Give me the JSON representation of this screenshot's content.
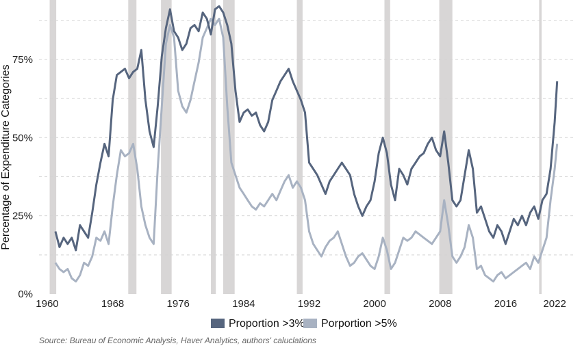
{
  "chart_data": {
    "type": "line",
    "ylabel": "Percentage of Expenditure Categories",
    "source": "Source: Bureau of Economic Analysis, Haver Analytics, authors' caluclations",
    "x_ticks": [
      "1960",
      "1968",
      "1976",
      "1984",
      "1992",
      "2000",
      "2008",
      "2016",
      "2022"
    ],
    "x_tick_values": [
      1960,
      1968,
      1976,
      1984,
      1992,
      2000,
      2008,
      2016,
      2022
    ],
    "y_ticks": [
      "0%",
      "25%",
      "50%",
      "75%"
    ],
    "y_tick_values": [
      0,
      25,
      50,
      75
    ],
    "xlim": [
      1959,
      2024.5
    ],
    "ylim": [
      0,
      94
    ],
    "grid": "horizontal dashed",
    "legend_position": "bottom",
    "recessions": [
      [
        1960.3,
        1961.1
      ],
      [
        1969.9,
        1970.9
      ],
      [
        1973.9,
        1975.2
      ],
      [
        1980.0,
        1980.6
      ],
      [
        1981.5,
        1982.9
      ],
      [
        1990.5,
        1991.2
      ],
      [
        2001.2,
        2001.9
      ],
      [
        2007.9,
        2009.5
      ],
      [
        2020.1,
        2020.4
      ]
    ],
    "recession_color": "#d8d6d6",
    "series": [
      {
        "name": "Proportion >3%",
        "color": "#56657e",
        "x": [
          1961.0,
          1961.5,
          1962.0,
          1962.5,
          1963.0,
          1963.5,
          1964.0,
          1964.5,
          1965.0,
          1965.5,
          1966.0,
          1966.5,
          1967.0,
          1967.5,
          1968.0,
          1968.5,
          1969.0,
          1969.5,
          1970.0,
          1970.5,
          1971.0,
          1971.5,
          1972.0,
          1972.5,
          1973.0,
          1973.5,
          1974.0,
          1974.5,
          1975.0,
          1975.5,
          1976.0,
          1976.5,
          1977.0,
          1977.5,
          1978.0,
          1978.5,
          1979.0,
          1979.5,
          1980.0,
          1980.5,
          1981.0,
          1981.5,
          1982.0,
          1982.5,
          1983.0,
          1983.5,
          1984.0,
          1984.5,
          1985.0,
          1985.5,
          1986.0,
          1986.5,
          1987.0,
          1987.5,
          1988.0,
          1988.5,
          1989.0,
          1989.5,
          1990.0,
          1990.5,
          1991.0,
          1991.5,
          1992.0,
          1992.5,
          1993.0,
          1993.5,
          1994.0,
          1994.5,
          1995.0,
          1995.5,
          1996.0,
          1996.5,
          1997.0,
          1997.5,
          1998.0,
          1998.5,
          1999.0,
          1999.5,
          2000.0,
          2000.5,
          2001.0,
          2001.5,
          2002.0,
          2002.5,
          2003.0,
          2003.5,
          2004.0,
          2004.5,
          2005.0,
          2005.5,
          2006.0,
          2006.5,
          2007.0,
          2007.5,
          2008.0,
          2008.5,
          2009.0,
          2009.5,
          2010.0,
          2010.5,
          2011.0,
          2011.5,
          2012.0,
          2012.5,
          2013.0,
          2013.5,
          2014.0,
          2014.5,
          2015.0,
          2015.5,
          2016.0,
          2016.5,
          2017.0,
          2017.5,
          2018.0,
          2018.5,
          2019.0,
          2019.5,
          2020.0,
          2020.5,
          2021.0,
          2021.5,
          2022.0,
          2022.3
        ],
        "values": [
          20,
          15,
          18,
          16,
          18,
          14,
          22,
          20,
          18,
          26,
          35,
          42,
          48,
          44,
          62,
          70,
          71,
          72,
          69,
          71,
          72,
          78,
          62,
          52,
          47,
          60,
          76,
          85,
          91,
          84,
          82,
          78,
          80,
          85,
          86,
          84,
          90,
          88,
          83,
          91,
          92,
          90,
          86,
          80,
          65,
          55,
          58,
          59,
          57,
          58,
          54,
          52,
          55,
          62,
          65,
          68,
          70,
          72,
          68,
          65,
          62,
          58,
          42,
          40,
          38,
          35,
          32,
          36,
          38,
          40,
          42,
          40,
          38,
          32,
          28,
          25,
          28,
          30,
          36,
          45,
          50,
          45,
          35,
          30,
          40,
          38,
          35,
          40,
          42,
          44,
          45,
          48,
          50,
          46,
          44,
          52,
          42,
          30,
          28,
          30,
          38,
          46,
          40,
          26,
          28,
          24,
          20,
          18,
          22,
          20,
          16,
          20,
          24,
          22,
          25,
          22,
          26,
          28,
          24,
          30,
          32,
          40,
          55,
          68
        ]
      },
      {
        "name": "Porportion >5%",
        "color": "#a8b2c2",
        "x": [
          1961.0,
          1961.5,
          1962.0,
          1962.5,
          1963.0,
          1963.5,
          1964.0,
          1964.5,
          1965.0,
          1965.5,
          1966.0,
          1966.5,
          1967.0,
          1967.5,
          1968.0,
          1968.5,
          1969.0,
          1969.5,
          1970.0,
          1970.5,
          1971.0,
          1971.5,
          1972.0,
          1972.5,
          1973.0,
          1973.5,
          1974.0,
          1974.5,
          1975.0,
          1975.5,
          1976.0,
          1976.5,
          1977.0,
          1977.5,
          1978.0,
          1978.5,
          1979.0,
          1979.5,
          1980.0,
          1980.5,
          1981.0,
          1981.5,
          1982.0,
          1982.5,
          1983.0,
          1983.5,
          1984.0,
          1984.5,
          1985.0,
          1985.5,
          1986.0,
          1986.5,
          1987.0,
          1987.5,
          1988.0,
          1988.5,
          1989.0,
          1989.5,
          1990.0,
          1990.5,
          1991.0,
          1991.5,
          1992.0,
          1992.5,
          1993.0,
          1993.5,
          1994.0,
          1994.5,
          1995.0,
          1995.5,
          1996.0,
          1996.5,
          1997.0,
          1997.5,
          1998.0,
          1998.5,
          1999.0,
          1999.5,
          2000.0,
          2000.5,
          2001.0,
          2001.5,
          2002.0,
          2002.5,
          2003.0,
          2003.5,
          2004.0,
          2004.5,
          2005.0,
          2005.5,
          2006.0,
          2006.5,
          2007.0,
          2007.5,
          2008.0,
          2008.5,
          2009.0,
          2009.5,
          2010.0,
          2010.5,
          2011.0,
          2011.5,
          2012.0,
          2012.5,
          2013.0,
          2013.5,
          2014.0,
          2014.5,
          2015.0,
          2015.5,
          2016.0,
          2016.5,
          2017.0,
          2017.5,
          2018.0,
          2018.5,
          2019.0,
          2019.5,
          2020.0,
          2020.5,
          2021.0,
          2021.5,
          2022.0,
          2022.3
        ],
        "values": [
          10,
          8,
          7,
          8,
          5,
          4,
          6,
          10,
          9,
          12,
          18,
          17,
          20,
          16,
          28,
          38,
          46,
          44,
          45,
          48,
          40,
          28,
          22,
          18,
          16,
          40,
          60,
          80,
          86,
          82,
          65,
          60,
          58,
          62,
          68,
          74,
          82,
          85,
          88,
          86,
          88,
          82,
          60,
          42,
          38,
          34,
          32,
          30,
          28,
          27,
          29,
          28,
          30,
          32,
          30,
          33,
          36,
          38,
          34,
          36,
          34,
          30,
          20,
          16,
          14,
          12,
          15,
          17,
          18,
          20,
          16,
          12,
          9,
          10,
          12,
          13,
          11,
          9,
          8,
          12,
          18,
          14,
          8,
          10,
          14,
          18,
          17,
          18,
          20,
          19,
          18,
          17,
          16,
          18,
          20,
          30,
          22,
          12,
          10,
          12,
          15,
          22,
          18,
          8,
          9,
          6,
          5,
          4,
          6,
          7,
          5,
          6,
          7,
          8,
          9,
          10,
          8,
          12,
          10,
          14,
          18,
          30,
          40,
          48
        ]
      }
    ]
  }
}
